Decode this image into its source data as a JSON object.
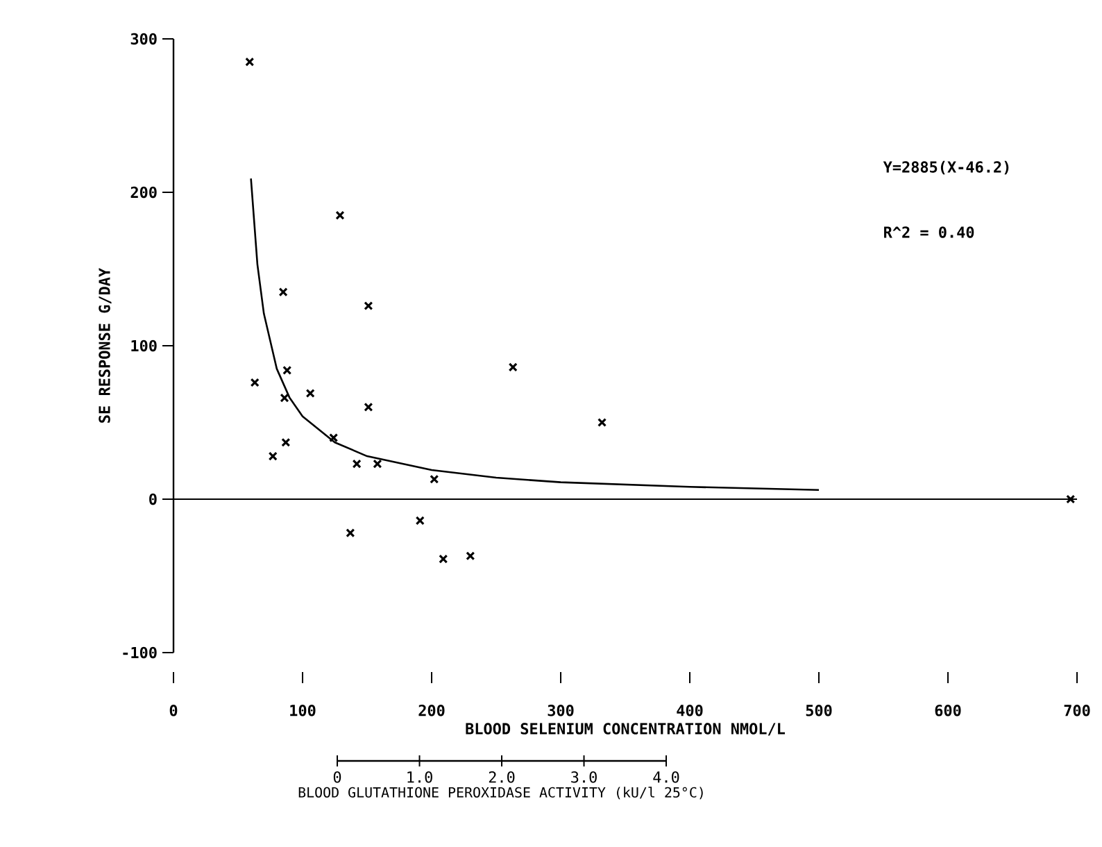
{
  "chart_data": {
    "type": "scatter",
    "xlabel": "BLOOD SELENIUM CONCENTRATION   NMOL/L",
    "ylabel": "SE RESPONSE   G/DAY",
    "xlim": [
      0,
      700
    ],
    "ylim": [
      -100,
      300
    ],
    "xticks": [
      0,
      100,
      200,
      300,
      400,
      500,
      600,
      700
    ],
    "yticks": [
      -100,
      0,
      100,
      200,
      300
    ],
    "x2lim": [
      0,
      4
    ],
    "x2ticks": [
      {
        "value": 0,
        "label": "0"
      },
      {
        "value": 1,
        "label": "1.0"
      },
      {
        "value": 2,
        "label": "2.0"
      },
      {
        "value": 3,
        "label": "3.0"
      },
      {
        "value": 4,
        "label": "4.0"
      }
    ],
    "x2label": "BLOOD GLUTATHIONE PEROXIDASE ACTIVITY (kU/l 25°C)",
    "annotations": [
      "Y=2885(X-46.2)",
      "R^2 = 0.40"
    ],
    "ref_lines": [
      {
        "axis": "y",
        "value": 0,
        "color": "#000000"
      }
    ],
    "series": [
      {
        "marker": "cross",
        "color": "#000000",
        "x": [
          59,
          129,
          85,
          151,
          63,
          88,
          86,
          106,
          77,
          87,
          124,
          151,
          142,
          158,
          202,
          263,
          332,
          137,
          191,
          209,
          230,
          695
        ],
        "values": [
          285,
          185,
          135,
          126,
          76,
          84,
          66,
          69,
          28,
          37,
          40,
          60,
          23,
          23,
          13,
          86,
          50,
          -22,
          -14,
          -39,
          -37,
          0
        ]
      },
      {
        "type": "line",
        "marker": "none",
        "line_style": "solid",
        "color": "#000000",
        "x": [
          60,
          65,
          70,
          80,
          90,
          100,
          125,
          150,
          200,
          250,
          300,
          400,
          500
        ],
        "values": [
          209,
          153,
          121,
          85,
          66,
          54,
          37,
          28,
          19,
          14,
          11,
          8,
          6
        ]
      }
    ]
  }
}
